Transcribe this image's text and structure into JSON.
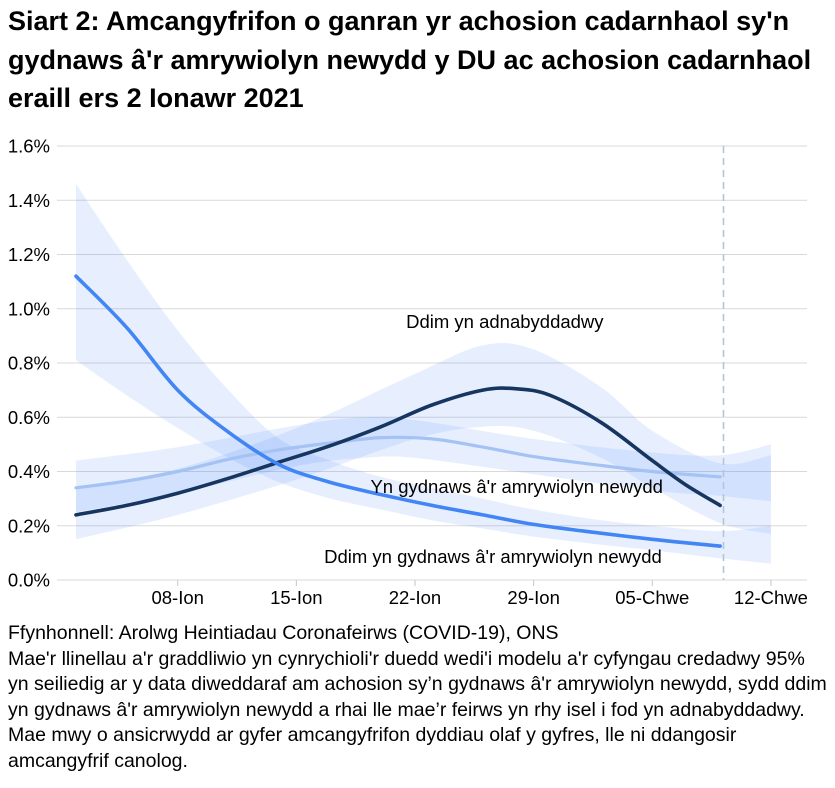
{
  "title": "Siart 2: Amcangyfrifon o ganran yr achosion cadarnhaol sy'n gydnaws â'r amrywiolyn newydd y DU ac achosion cadarnhaol eraill ers 2 Ionawr 2021",
  "footer": {
    "source": "Ffynhonnell: Arolwg Heintiadau Coronafeirws (COVID-19), ONS",
    "note": "Mae'r llinellau a'r graddliwio yn cynrychioli'r duedd wedi'i modelu a'r cyfyngau credadwy 95% yn seiliedig ar y data diweddaraf am achosion sy’n gydnaws â'r amrywiolyn newydd, sydd ddim yn gydnaws â'r amrywiolyn newydd a rhai lle mae’r feirws yn rhy isel i fod yn adnabyddadwy. Mae mwy o ansicrwydd ar gyfer amcangyfrifon dyddiau olaf y gyfres, lle ni ddangosir amcangyfrif canolog."
  },
  "colors": {
    "band_fill": "rgba(66,133,244,0.13)",
    "gridline": "#d9d9d9",
    "tick": "#c6c6c6",
    "dashed_line": "#b7c4d8",
    "navy": "#16355f",
    "medium_blue": "#4285f4",
    "light_blue": "#a4c2f4"
  },
  "chart_data": {
    "type": "line",
    "x_unit": "days since 02 Ionawr 2021",
    "ylim": [
      0,
      1.6
    ],
    "grid": true,
    "y_ticks": [
      {
        "value": 0.0,
        "label": "0.0%"
      },
      {
        "value": 0.2,
        "label": "0.2%"
      },
      {
        "value": 0.4,
        "label": "0.4%"
      },
      {
        "value": 0.6,
        "label": "0.6%"
      },
      {
        "value": 0.8,
        "label": "0.8%"
      },
      {
        "value": 1.0,
        "label": "1.0%"
      },
      {
        "value": 1.2,
        "label": "1.2%"
      },
      {
        "value": 1.4,
        "label": "1.4%"
      },
      {
        "value": 1.6,
        "label": "1.6%"
      }
    ],
    "x_ticks": [
      {
        "day": 6,
        "label": "08-Ion"
      },
      {
        "day": 13,
        "label": "15-Ion"
      },
      {
        "day": 20,
        "label": "22-Ion"
      },
      {
        "day": 27,
        "label": "29-Ion"
      },
      {
        "day": 34,
        "label": "05-Chwe"
      },
      {
        "day": 41,
        "label": "12-Chwe"
      }
    ],
    "dashed_line_day": 38.2,
    "series": [
      {
        "name": "Yn gydnaws â'r amrywiolyn newydd",
        "color_key": "light_blue",
        "stroke_width": 3.2,
        "points": [
          [
            0,
            0.34
          ],
          [
            3,
            0.365
          ],
          [
            6,
            0.4
          ],
          [
            9,
            0.445
          ],
          [
            12,
            0.48
          ],
          [
            15,
            0.505
          ],
          [
            18,
            0.525
          ],
          [
            21,
            0.52
          ],
          [
            24,
            0.49
          ],
          [
            27,
            0.455
          ],
          [
            30,
            0.43
          ],
          [
            34,
            0.4
          ],
          [
            38,
            0.38
          ]
        ],
        "band": [
          [
            0,
            0.25,
            0.44
          ],
          [
            6,
            0.32,
            0.49
          ],
          [
            13,
            0.42,
            0.57
          ],
          [
            17,
            0.45,
            0.6
          ],
          [
            20,
            0.45,
            0.59
          ],
          [
            27,
            0.39,
            0.52
          ],
          [
            34,
            0.33,
            0.47
          ],
          [
            38,
            0.31,
            0.46
          ],
          [
            41,
            0.29,
            0.5
          ]
        ]
      },
      {
        "name": "Ddim yn adnabyddadwy",
        "color_key": "navy",
        "stroke_width": 3.6,
        "points": [
          [
            0,
            0.24
          ],
          [
            3,
            0.275
          ],
          [
            6,
            0.32
          ],
          [
            9,
            0.375
          ],
          [
            12,
            0.435
          ],
          [
            15,
            0.495
          ],
          [
            18,
            0.565
          ],
          [
            21,
            0.645
          ],
          [
            24,
            0.7
          ],
          [
            26,
            0.705
          ],
          [
            28,
            0.68
          ],
          [
            31,
            0.58
          ],
          [
            34,
            0.44
          ],
          [
            36,
            0.35
          ],
          [
            38,
            0.275
          ]
        ],
        "band": [
          [
            0,
            0.15,
            0.34
          ],
          [
            6,
            0.24,
            0.41
          ],
          [
            13,
            0.37,
            0.56
          ],
          [
            20,
            0.52,
            0.76
          ],
          [
            24,
            0.565,
            0.865
          ],
          [
            27,
            0.55,
            0.85
          ],
          [
            31,
            0.45,
            0.71
          ],
          [
            34,
            0.34,
            0.55
          ],
          [
            38,
            0.21,
            0.43
          ],
          [
            41,
            0.17,
            0.46
          ]
        ]
      },
      {
        "name": "Ddim yn gydnaws â'r amrywiolyn newydd",
        "color_key": "medium_blue",
        "stroke_width": 3.6,
        "points": [
          [
            0,
            1.12
          ],
          [
            3,
            0.93
          ],
          [
            6,
            0.7
          ],
          [
            9,
            0.545
          ],
          [
            12,
            0.425
          ],
          [
            15,
            0.36
          ],
          [
            18,
            0.315
          ],
          [
            21,
            0.275
          ],
          [
            24,
            0.24
          ],
          [
            27,
            0.205
          ],
          [
            30,
            0.18
          ],
          [
            34,
            0.15
          ],
          [
            38,
            0.125
          ]
        ],
        "band": [
          [
            0,
            0.81,
            1.46
          ],
          [
            3,
            0.68,
            1.18
          ],
          [
            6,
            0.56,
            0.92
          ],
          [
            9,
            0.45,
            0.7
          ],
          [
            12,
            0.36,
            0.52
          ],
          [
            15,
            0.3,
            0.44
          ],
          [
            18,
            0.26,
            0.38
          ],
          [
            21,
            0.22,
            0.34
          ],
          [
            24,
            0.19,
            0.3
          ],
          [
            27,
            0.16,
            0.26
          ],
          [
            31,
            0.13,
            0.22
          ],
          [
            34,
            0.11,
            0.2
          ],
          [
            38,
            0.08,
            0.18
          ],
          [
            41,
            0.06,
            0.2
          ]
        ]
      }
    ],
    "annotations": [
      {
        "text": "Ddim yn adnabyddadwy",
        "day": 25.3,
        "value": 0.951
      },
      {
        "text": "Yn gydnaws â'r amrywiolyn newydd",
        "day": 26.0,
        "value": 0.343
      },
      {
        "text": "Ddim yn gydnaws â'r amrywiolyn newydd",
        "day": 24.6,
        "value": 0.085
      }
    ]
  }
}
